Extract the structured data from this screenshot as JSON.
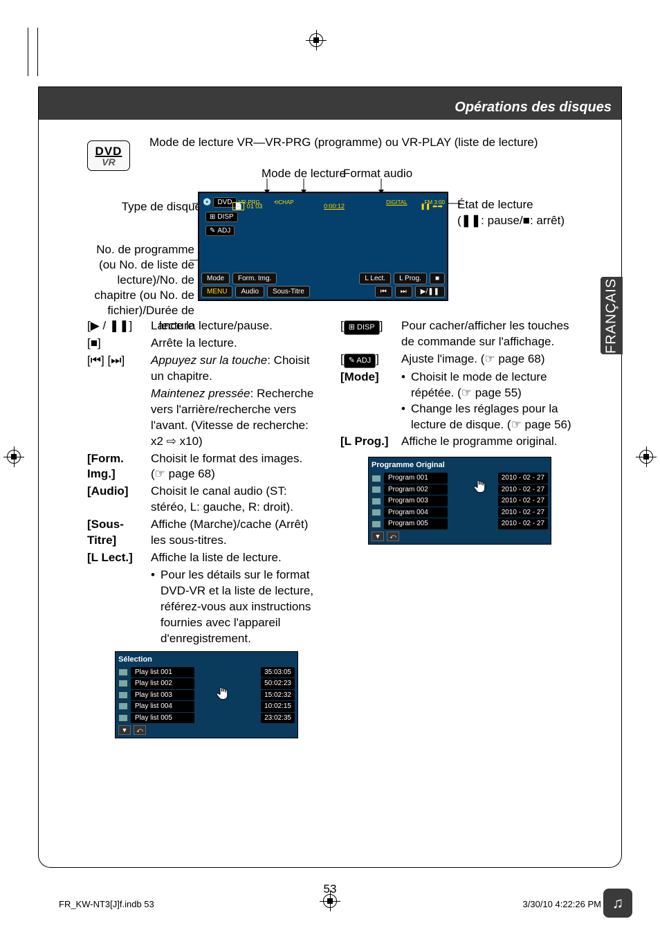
{
  "header": {
    "title": "Opérations des disques"
  },
  "lang_tab": "FRANÇAIS",
  "dvd_badge": {
    "top": "DVD",
    "bottom": "VR"
  },
  "vr_mode_desc": "Mode de lecture VR—VR-PRG (programme) ou VR-PLAY (liste de lecture)",
  "label_mode_lecture": "Mode de lecture",
  "label_format_audio": "Format audio",
  "label_type_disque": "Type de disque",
  "label_etat": "État de lecture",
  "label_etat2_prefix": "(",
  "label_etat2_pause": ": pause/",
  "label_etat2_arret": ": arrêt)",
  "label_prog_block": "No. de programme (ou No. de liste de lecture)/No. de chapitre (ou No. de fichier)/Durée de lecture",
  "screen": {
    "dvd": "DVD",
    "vrprg": "VR-PRG",
    "chap": "CHAP",
    "digital": "DIGITAL",
    "time": "0:00:12",
    "fm": "FM 3:00",
    "nums": "01 03",
    "disp": "DISP",
    "adj": "ADJ",
    "row1": [
      "Mode",
      "Form. Img."
    ],
    "row1r": [
      "L Lect.",
      "L Prog.",
      "■"
    ],
    "row2": [
      "MENU",
      "Audio",
      "Sous-Titre"
    ],
    "row2r": [
      "⏮",
      "⏭",
      "▶/❚❚"
    ]
  },
  "left_controls": [
    {
      "key": "[▶ / ❚❚]",
      "val": "Lance la lecture/pause."
    },
    {
      "key": "[■]",
      "val": "Arrête la lecture."
    },
    {
      "key": "[⏮] [⏭]",
      "valPrefixItalic": "Appuyez sur la touche",
      "valAfter": ": Choisit un chapitre."
    },
    {
      "key": "",
      "valPrefixItalic": "Maintenez pressée",
      "valAfter": ": Recherche vers l'arrière/recherche vers l'avant. (Vitesse de recherche: x2 ⇨ x10)"
    },
    {
      "key": "[Form. Img.]",
      "val": "Choisit le format des images. (☞ page 68)"
    },
    {
      "key": "[Audio]",
      "val": "Choisit le canal audio (ST: stéréo, L: gauche, R: droit)."
    },
    {
      "key": "[Sous-Titre]",
      "val": "Affiche (Marche)/cache (Arrêt) les sous-titres."
    },
    {
      "key": "[L Lect.]",
      "val": "Affiche la liste de lecture."
    }
  ],
  "left_bullet": "Pour les détails sur le format DVD-VR et la liste de lecture, référez-vous aux instructions fournies avec l'appareil d'enregistrement.",
  "playlist": {
    "title": "Sélection",
    "rows": [
      {
        "name": "Play list 001",
        "meta": "35:03:05"
      },
      {
        "name": "Play list 002",
        "meta": "50:02:23"
      },
      {
        "name": "Play list 003",
        "meta": "15:02:32"
      },
      {
        "name": "Play list 004",
        "meta": "10:02:15"
      },
      {
        "name": "Play list 005",
        "meta": "23:02:35"
      }
    ]
  },
  "right_controls": {
    "disp": {
      "key": "DISP",
      "val": "Pour cacher/afficher les touches de commande sur l'affichage."
    },
    "adj": {
      "key": "ADJ",
      "val": "Ajuste l'image. (☞ page 68)"
    },
    "mode": {
      "key": "[Mode]",
      "b1": "Choisit le mode de lecture répétée. (☞ page 55)",
      "b2": "Change les réglages pour la lecture de disque. (☞ page 56)"
    },
    "lprog": {
      "key": "[L Prog.]",
      "val": "Affiche le programme original."
    }
  },
  "program_orig": {
    "title": "Programme Original",
    "rows": [
      {
        "name": "Program 001",
        "meta": "2010 - 02 - 27"
      },
      {
        "name": "Program 002",
        "meta": "2010 - 02 - 27"
      },
      {
        "name": "Program 003",
        "meta": "2010 - 02 - 27"
      },
      {
        "name": "Program 004",
        "meta": "2010 - 02 - 27"
      },
      {
        "name": "Program 005",
        "meta": "2010 - 02 - 27"
      }
    ]
  },
  "page_number": "53",
  "footer": {
    "left": "FR_KW-NT3[J]f.indb   53",
    "right": "3/30/10   4:22:26 PM"
  }
}
